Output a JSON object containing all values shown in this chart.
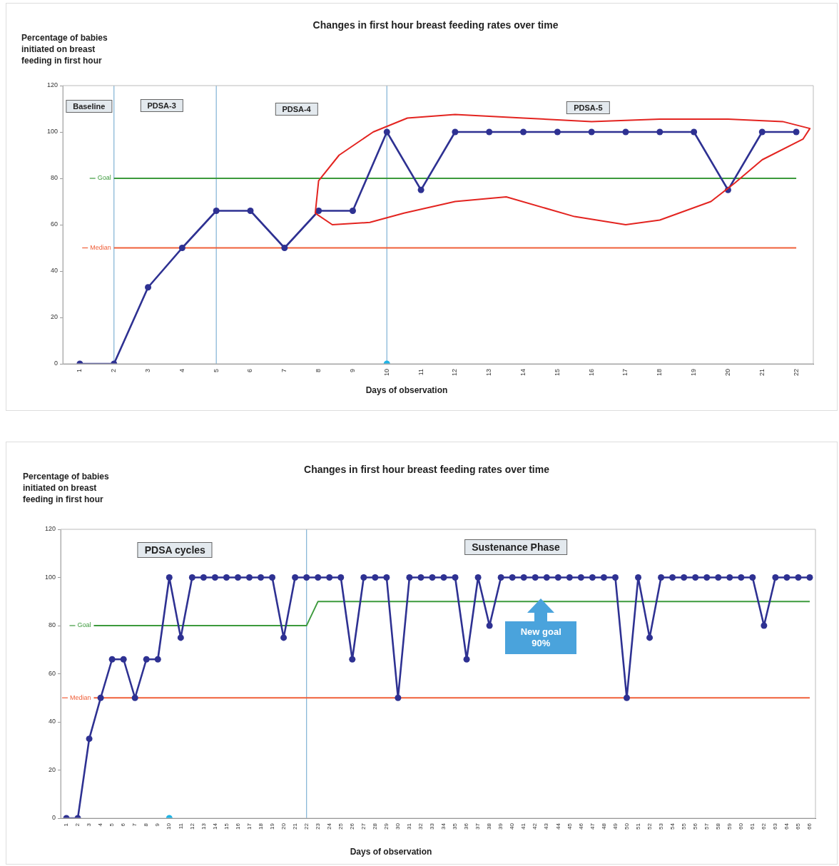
{
  "chart_data": [
    {
      "type": "line",
      "title": "Changes in first hour breast feeding  rates over time",
      "ylabel": "Percentage of babies initiated on breast feeding in first hour",
      "xlabel": "Days of observation",
      "x": [
        1,
        2,
        3,
        4,
        5,
        6,
        7,
        8,
        9,
        10,
        11,
        12,
        13,
        14,
        15,
        16,
        17,
        18,
        19,
        20,
        21,
        22
      ],
      "xlim": [
        0.5,
        22.5
      ],
      "xticks": [
        1,
        2,
        3,
        4,
        5,
        6,
        7,
        8,
        9,
        10,
        11,
        12,
        13,
        14,
        15,
        16,
        17,
        18,
        19,
        20,
        21,
        22
      ],
      "ylim": [
        0,
        120
      ],
      "yticks": [
        0,
        20,
        40,
        60,
        80,
        100,
        120
      ],
      "grid": false,
      "legend": "left",
      "marker": "circle",
      "series": [
        {
          "color": "#2e3192",
          "values": [
            0,
            0,
            33,
            50,
            66,
            66,
            50,
            66,
            66,
            100,
            75,
            100,
            100,
            100,
            100,
            100,
            100,
            100,
            100,
            75,
            100,
            100
          ]
        },
        {
          "name": "Goal",
          "type": "line",
          "marker": "none",
          "color": "#3c9a3c",
          "x": [
            2,
            22
          ],
          "values": [
            80,
            80
          ]
        },
        {
          "name": "Median",
          "type": "line",
          "marker": "none",
          "color": "#f0603a",
          "x": [
            2,
            22
          ],
          "values": [
            50,
            50
          ]
        },
        {
          "type": "scatter",
          "color": "#1eb4e6",
          "x": [
            10
          ],
          "values": [
            0
          ]
        }
      ],
      "ref_lines": [
        {
          "axis": "x",
          "value": 2,
          "color": "#8ab8d8"
        },
        {
          "axis": "x",
          "value": 5,
          "color": "#8ab8d8"
        },
        {
          "axis": "x",
          "value": 10,
          "color": "#8ab8d8"
        }
      ],
      "annotations": [
        "Baseline",
        "PDSA-3",
        "PDSA-4",
        "PDSA-5"
      ]
    },
    {
      "type": "line",
      "title": "Changes in first hour breast feeding  rates over time",
      "ylabel": "Percentage of babies initiated on breast feeding in first hour",
      "xlabel": "Days of observation",
      "x": [
        1,
        2,
        3,
        4,
        5,
        6,
        7,
        8,
        9,
        10,
        11,
        12,
        13,
        14,
        15,
        16,
        17,
        18,
        19,
        20,
        21,
        22,
        23,
        24,
        25,
        26,
        27,
        28,
        29,
        30,
        31,
        32,
        33,
        34,
        35,
        36,
        37,
        38,
        39,
        40,
        41,
        42,
        43,
        44,
        45,
        46,
        47,
        48,
        49,
        50,
        51,
        52,
        53,
        54,
        55,
        56,
        57,
        58,
        59,
        60,
        61,
        62,
        63,
        64,
        65,
        66
      ],
      "xlim": [
        0.5,
        66.5
      ],
      "xticks": [
        1,
        2,
        3,
        4,
        5,
        6,
        7,
        8,
        9,
        10,
        11,
        12,
        13,
        14,
        15,
        16,
        17,
        18,
        19,
        20,
        21,
        22,
        23,
        24,
        25,
        26,
        27,
        28,
        29,
        30,
        31,
        32,
        33,
        34,
        35,
        36,
        37,
        38,
        39,
        40,
        41,
        42,
        43,
        44,
        45,
        46,
        47,
        48,
        49,
        50,
        51,
        52,
        53,
        54,
        55,
        56,
        57,
        58,
        59,
        60,
        61,
        62,
        63,
        64,
        65,
        66
      ],
      "ylim": [
        0,
        120
      ],
      "yticks": [
        0,
        20,
        40,
        60,
        80,
        100,
        120
      ],
      "grid": false,
      "legend": "left",
      "marker": "circle",
      "series": [
        {
          "color": "#2e3192",
          "values": [
            0,
            0,
            33,
            50,
            66,
            66,
            50,
            66,
            66,
            100,
            75,
            100,
            100,
            100,
            100,
            100,
            100,
            100,
            100,
            75,
            100,
            100,
            100,
            100,
            100,
            66,
            100,
            100,
            100,
            50,
            100,
            100,
            100,
            100,
            100,
            66,
            100,
            80,
            100,
            100,
            100,
            100,
            100,
            100,
            100,
            100,
            100,
            100,
            100,
            50,
            100,
            75,
            100,
            100,
            100,
            100,
            100,
            100,
            100,
            100,
            100,
            80,
            100,
            100,
            100,
            100
          ]
        },
        {
          "name": "Goal",
          "type": "line",
          "marker": "none",
          "color": "#3c9a3c",
          "x": [
            3.4,
            22,
            23,
            66
          ],
          "values": [
            80,
            80,
            90,
            90
          ]
        },
        {
          "name": "Median",
          "type": "line",
          "marker": "none",
          "color": "#f0603a",
          "x": [
            3.4,
            66
          ],
          "values": [
            50,
            50
          ]
        },
        {
          "type": "scatter",
          "color": "#1eb4e6",
          "x": [
            10
          ],
          "values": [
            0
          ]
        }
      ],
      "ref_lines": [
        {
          "axis": "x",
          "value": 22,
          "color": "#8ab8d8"
        }
      ],
      "annotations": [
        "PDSA cycles",
        "Sustenance Phase",
        "New goal 90%"
      ]
    }
  ]
}
